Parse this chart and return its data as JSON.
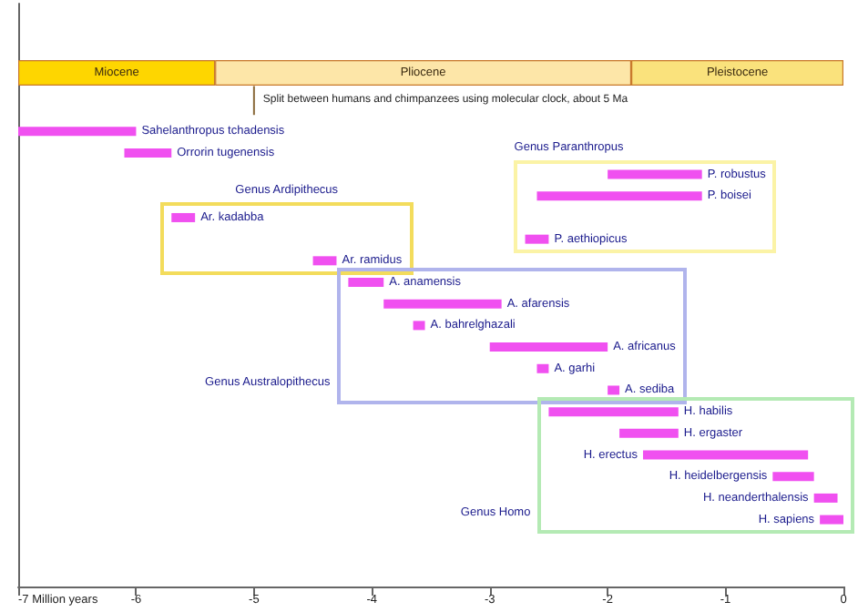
{
  "chart_data": [
    {
      "type": "bar",
      "orientation": "horizontal",
      "stacked": true,
      "categories": [
        null
      ],
      "series": [
        {
          "name": "Pleistocene",
          "color": "#fae27c",
          "values": [
            -1.8
          ]
        },
        {
          "name": "Pliocene",
          "color": "#fde6a8",
          "values": [
            -3.53
          ]
        },
        {
          "name": "Miocene",
          "color": "#fed600",
          "values": [
            -1.67
          ]
        }
      ],
      "xlim": [
        -7,
        0
      ],
      "tick_labels": false
    },
    {
      "type": "bar",
      "orientation": "horizontal",
      "categories": [
        "Sahelanthropus tchadensis",
        "Orrorin tugenensis",
        "P. robustus",
        "P. boisei",
        "Ar. kadabba",
        "P. aethiopicus",
        "Ar. ramidus",
        "A. anamensis",
        "A. afarensis",
        "A. bahrelghazali",
        "A. africanus",
        "A. garhi",
        "A. sediba",
        "H. habilis",
        "H. ergaster",
        "H. erectus",
        "H. heidelbergensis",
        "H. neanderthalensis",
        "H. sapiens"
      ],
      "base": [
        -7,
        -6.1,
        -2.0,
        -2.6,
        -5.7,
        -2.7,
        -4.5,
        -4.2,
        -3.9,
        -3.65,
        -3.0,
        -2.6,
        -2.0,
        -2.5,
        -1.9,
        -1.7,
        -0.6,
        -0.25,
        -0.2
      ],
      "values": [
        1.0,
        0.4,
        0.8,
        1.4,
        0.2,
        0.2,
        0.2,
        0.3,
        1.0,
        0.1,
        1.0,
        0.1,
        0.1,
        1.1,
        0.5,
        1.4,
        0.35,
        0.2,
        0.2
      ],
      "color": "#f050f0",
      "xlim": [
        -7,
        0
      ],
      "xticks": [
        {
          "value": -7,
          "label": "-7 Million years"
        },
        -6,
        -5,
        -4,
        -3,
        -2,
        -1,
        0
      ],
      "tick_labels": "x",
      "ref_lines": [
        {
          "axis": "x",
          "value": -5,
          "label": "Split between humans and chimpanzees using molecular clock, about 5 Ma",
          "color": "#8a6a3a"
        }
      ],
      "annotations": [
        "Genus Ardipithecus",
        "Genus Paranthropus",
        "Genus Australopithecus",
        "Genus Homo"
      ],
      "grid": false
    }
  ]
}
